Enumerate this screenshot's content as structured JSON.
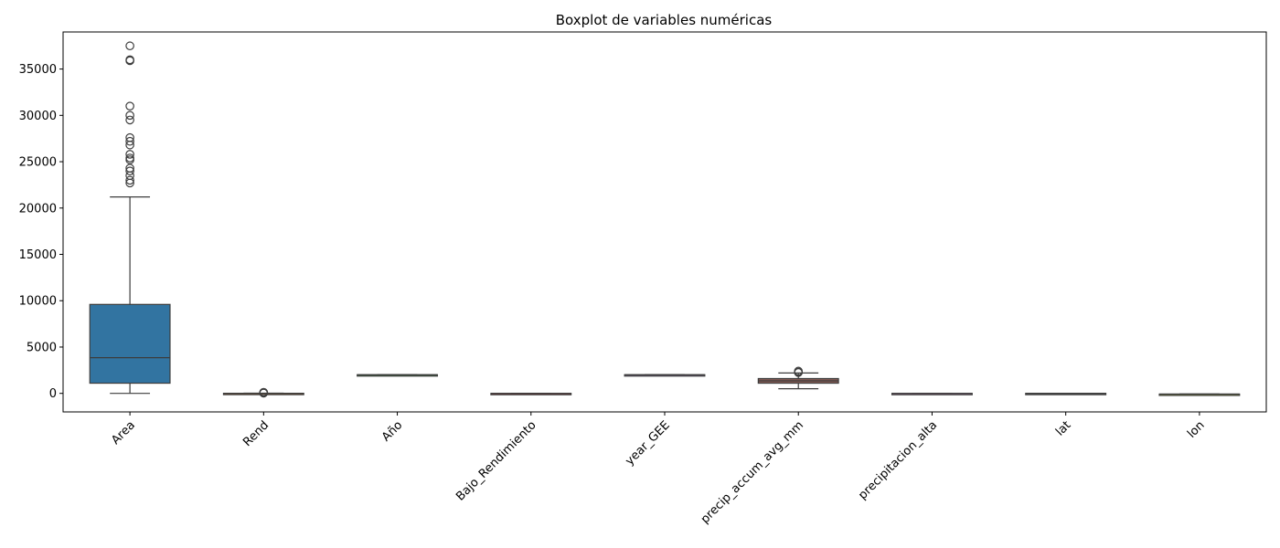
{
  "chart_data": {
    "type": "boxplot",
    "title": "Boxplot de variables numéricas",
    "xlabel": "",
    "ylabel": "",
    "ylim": [
      -2000,
      39000
    ],
    "y_ticks": [
      0,
      5000,
      10000,
      15000,
      20000,
      25000,
      30000,
      35000
    ],
    "y_tick_labels": [
      "0",
      "5000",
      "10000",
      "15000",
      "20000",
      "25000",
      "30000",
      "35000"
    ],
    "grid": false,
    "categories": [
      "Area",
      "Rend",
      "Año",
      "Bajo_Rendimiento",
      "year_GEE",
      "precip_accum_avg_mm",
      "precipitacion_alta",
      "lat",
      "lon"
    ],
    "colors": [
      "#3274a1",
      "#e1812c",
      "#3a923a",
      "#c03d3e",
      "#9372b2",
      "#845b53",
      "#d684bd",
      "#7f7f7f",
      "#a9aa35"
    ],
    "boxes": [
      {
        "name": "Area",
        "whisker_low": 0,
        "q1": 1100,
        "median": 3850,
        "q3": 9600,
        "whisker_high": 21200,
        "outliers": [
          22700,
          23000,
          23500,
          24000,
          24300,
          25200,
          25400,
          25800,
          26800,
          27200,
          27600,
          29500,
          30000,
          31000,
          35900,
          36000,
          37500
        ]
      },
      {
        "name": "Rend",
        "whisker_low": 0,
        "q1": 2,
        "median": 5,
        "q3": 10,
        "whisker_high": 20,
        "outliers": [
          30,
          50,
          80,
          120
        ]
      },
      {
        "name": "Año",
        "whisker_low": 2000,
        "q1": 2005,
        "median": 2010,
        "q3": 2015,
        "whisker_high": 2022,
        "outliers": []
      },
      {
        "name": "Bajo_Rendimiento",
        "whisker_low": 0,
        "q1": 0,
        "median": 0,
        "q3": 1,
        "whisker_high": 1,
        "outliers": []
      },
      {
        "name": "year_GEE",
        "whisker_low": 2000,
        "q1": 2005,
        "median": 2010,
        "q3": 2015,
        "whisker_high": 2022,
        "outliers": []
      },
      {
        "name": "precip_accum_avg_mm",
        "whisker_low": 500,
        "q1": 1100,
        "median": 1350,
        "q3": 1600,
        "whisker_high": 2200,
        "outliers": [
          2250,
          2300,
          2400
        ]
      },
      {
        "name": "precipitacion_alta",
        "whisker_low": 0,
        "q1": 0,
        "median": 0,
        "q3": 1,
        "whisker_high": 1,
        "outliers": []
      },
      {
        "name": "lat",
        "whisker_low": 2,
        "q1": 4,
        "median": 5,
        "q3": 6,
        "whisker_high": 8,
        "outliers": []
      },
      {
        "name": "lon",
        "whisker_low": -77,
        "q1": -76,
        "median": -75,
        "q3": -74,
        "whisker_high": -72,
        "outliers": []
      }
    ]
  }
}
